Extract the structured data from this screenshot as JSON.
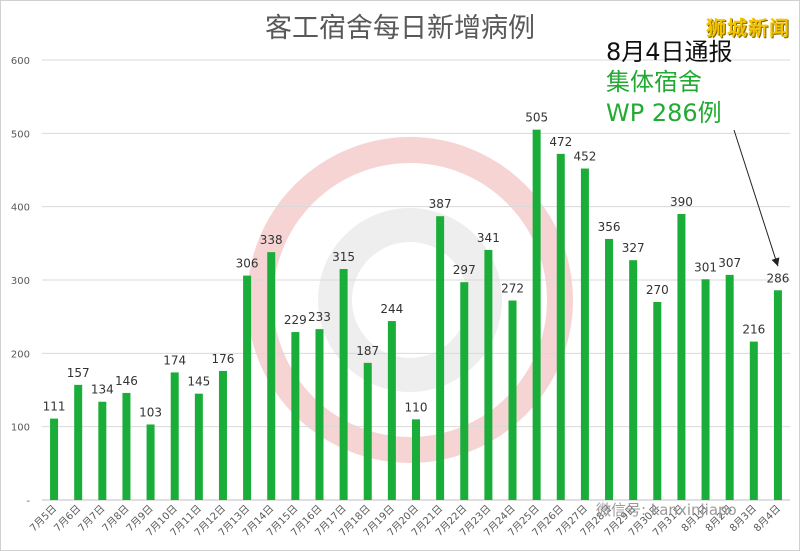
{
  "chart_data": {
    "type": "bar",
    "title": "客工宿舍每日新增病例",
    "categories": [
      "7月5日",
      "7月6日",
      "7月7日",
      "7月8日",
      "7月9日",
      "7月10日",
      "7月11日",
      "7月12日",
      "7月13日",
      "7月14日",
      "7月15日",
      "7月16日",
      "7月17日",
      "7月18日",
      "7月19日",
      "7月20日",
      "7月21日",
      "7月22日",
      "7月23日",
      "7月24日",
      "7月25日",
      "7月26日",
      "7月27日",
      "7月28日",
      "7月29日",
      "7月30日",
      "7月31日",
      "8月1日",
      "8月2日",
      "8月3日",
      "8月4日"
    ],
    "values": [
      111,
      157,
      134,
      146,
      103,
      174,
      145,
      176,
      306,
      338,
      229,
      233,
      315,
      187,
      244,
      110,
      387,
      297,
      341,
      272,
      505,
      472,
      452,
      356,
      327,
      270,
      390,
      301,
      307,
      216,
      286
    ],
    "ylim": [
      0,
      600
    ],
    "yticks": [
      "-",
      "100",
      "200",
      "300",
      "400",
      "500",
      "600"
    ],
    "grid": true,
    "bar_color": "#1aad3a"
  },
  "brand": "狮城新闻",
  "annotation": {
    "line1": "8月4日通报",
    "line2": "集体宿舍",
    "line3": "WP 286例",
    "arrow_target": "8月4日"
  },
  "wechat_label": "微信号: kanxinjiapo"
}
